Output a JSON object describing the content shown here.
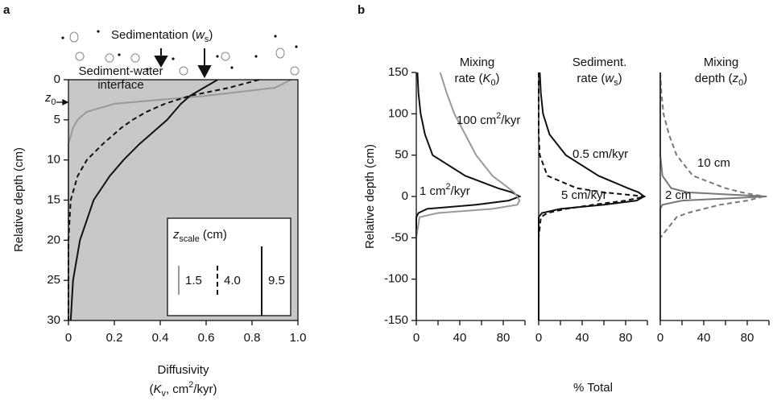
{
  "chart_data": [
    {
      "type": "line",
      "panel_label": "a",
      "title": [
        {
          "text": "Sedimentation ("
        },
        {
          "text": "w",
          "style": "i"
        },
        {
          "text": "s",
          "style": "sub"
        },
        {
          "text": ")"
        }
      ],
      "annotations": [
        "Sediment-water",
        "interface"
      ],
      "marker_label": [
        {
          "text": "z",
          "style": "i"
        },
        {
          "text": "0",
          "style": "sub"
        }
      ],
      "xlabel": [
        "Diffusivity",
        [
          {
            "text": "("
          },
          {
            "text": "K",
            "style": "i"
          },
          {
            "text": "v",
            "style": "sub"
          },
          {
            "text": ", cm"
          },
          {
            "text": "2",
            "style": "sup"
          },
          {
            "text": "/kyr)"
          }
        ]
      ],
      "ylabel": "Relative depth (cm)",
      "xlim": [
        0,
        1
      ],
      "xticks": [
        0,
        0.2,
        0.4,
        0.6,
        0.8,
        {
          "value": 1,
          "label": "1.0"
        }
      ],
      "ylim": [
        0,
        30
      ],
      "yticks": [
        0,
        5,
        10,
        15,
        20,
        25,
        30
      ],
      "y_inverted": true,
      "plot_background": "#c8c8c8",
      "legend_title": [
        {
          "text": "z",
          "style": "i"
        },
        {
          "text": "scale",
          "style": "sub"
        },
        {
          "text": " (cm)"
        }
      ],
      "y": [
        0,
        1,
        2,
        3,
        4,
        5,
        6,
        7,
        8,
        10,
        12,
        15,
        20,
        25,
        30
      ],
      "series": [
        {
          "name": "1.5",
          "color": "#999999",
          "dash": false,
          "values": [
            0.97,
            0.9,
            0.6,
            0.2,
            0.08,
            0.04,
            0.02,
            0.01,
            0,
            0,
            0,
            0,
            0,
            0,
            0
          ]
        },
        {
          "name": "4.0",
          "color": "#111111",
          "dash": true,
          "values": [
            0.83,
            0.7,
            0.53,
            0.42,
            0.34,
            0.28,
            0.23,
            0.19,
            0.15,
            0.08,
            0.04,
            0.01,
            0,
            0,
            0
          ]
        },
        {
          "name": "9.5",
          "color": "#111111",
          "dash": false,
          "values": [
            0.65,
            0.59,
            0.53,
            0.49,
            0.46,
            0.43,
            0.39,
            0.35,
            0.31,
            0.24,
            0.18,
            0.11,
            0.05,
            0.02,
            0.01
          ]
        }
      ]
    },
    {
      "type": "line",
      "panel_label": "b",
      "title": [
        [
          {
            "text": "Mixing"
          }
        ],
        [
          {
            "text": "rate ("
          },
          {
            "text": "K",
            "style": "i"
          },
          {
            "text": "0",
            "style": "sub"
          },
          {
            "text": ")"
          }
        ]
      ],
      "ylabel": "Relative depth (cm)",
      "xlim": [
        0,
        100
      ],
      "xticks": [
        0,
        40,
        80
      ],
      "xminor": [
        20,
        60,
        100
      ],
      "ylim": [
        -150,
        150
      ],
      "yticks": [
        150,
        100,
        50,
        0,
        -50,
        -100,
        -150
      ],
      "ytick_labels": true,
      "y": [
        150,
        125,
        100,
        75,
        50,
        25,
        10,
        5,
        0,
        -5,
        -10,
        -15,
        -20,
        -25,
        -50,
        -100,
        -150
      ],
      "series": [
        {
          "label": [
            {
              "text": "1 cm"
            },
            {
              "text": "2",
              "style": "sup"
            },
            {
              "text": "/kyr"
            }
          ],
          "color": "#111111",
          "dash": false,
          "values": [
            1,
            2,
            4,
            8,
            15,
            45,
            75,
            88,
            95,
            85,
            55,
            10,
            2,
            0,
            0,
            0,
            0
          ]
        },
        {
          "label": [
            {
              "text": "100 cm"
            },
            {
              "text": "2",
              "style": "sup"
            },
            {
              "text": "/kyr"
            }
          ],
          "color": "#999999",
          "dash": false,
          "values": [
            22,
            28,
            35,
            45,
            55,
            70,
            85,
            90,
            93,
            95,
            93,
            70,
            20,
            3,
            0,
            0,
            0
          ]
        }
      ]
    },
    {
      "type": "line",
      "title": [
        [
          {
            "text": "Sediment."
          }
        ],
        [
          {
            "text": "rate ("
          },
          {
            "text": "w",
            "style": "i"
          },
          {
            "text": "s",
            "style": "sub"
          },
          {
            "text": ")"
          }
        ]
      ],
      "xlabel": "% Total",
      "xlim": [
        0,
        100
      ],
      "xticks": [
        0,
        40,
        80
      ],
      "xminor": [
        20,
        60,
        100
      ],
      "ylim": [
        -150,
        150
      ],
      "ytick_labels": false,
      "y": [
        150,
        125,
        100,
        75,
        50,
        25,
        10,
        5,
        0,
        -5,
        -10,
        -15,
        -20,
        -25,
        -50,
        -100,
        -150
      ],
      "series": [
        {
          "label": [
            {
              "text": "0.5 cm/kyr"
            }
          ],
          "color": "#111111",
          "dash": false,
          "values": [
            1,
            2,
            4,
            10,
            25,
            55,
            82,
            92,
            97,
            90,
            60,
            20,
            3,
            0,
            0,
            0,
            0
          ]
        },
        {
          "label": [
            {
              "text": "5 cm/kyr"
            }
          ],
          "color": "#111111",
          "dash": true,
          "values": [
            0,
            0,
            0,
            0,
            1,
            8,
            35,
            60,
            98,
            80,
            50,
            25,
            8,
            2,
            0,
            0,
            0
          ]
        }
      ]
    },
    {
      "type": "line",
      "title": [
        [
          {
            "text": "Mixing"
          }
        ],
        [
          {
            "text": "depth ("
          },
          {
            "text": "z",
            "style": "i"
          },
          {
            "text": "0",
            "style": "sub"
          },
          {
            "text": ")"
          }
        ]
      ],
      "xlim": [
        0,
        100
      ],
      "xticks": [
        0,
        40,
        80
      ],
      "xminor": [
        20,
        60,
        100
      ],
      "ylim": [
        -150,
        150
      ],
      "ytick_labels": false,
      "y": [
        150,
        125,
        100,
        75,
        50,
        25,
        10,
        5,
        0,
        -5,
        -10,
        -15,
        -20,
        -25,
        -50,
        -100,
        -150
      ],
      "series": [
        {
          "label": [
            {
              "text": "2 cm"
            }
          ],
          "color": "#777777",
          "dash": false,
          "values": [
            0,
            0,
            0,
            0,
            0,
            2,
            10,
            25,
            98,
            20,
            2,
            0,
            0,
            0,
            0,
            0,
            0
          ]
        },
        {
          "label": [
            {
              "text": "10 cm"
            }
          ],
          "color": "#777777",
          "dash": true,
          "values": [
            0,
            1,
            3,
            8,
            15,
            30,
            60,
            75,
            95,
            80,
            55,
            40,
            25,
            15,
            0,
            0,
            0
          ]
        }
      ]
    }
  ]
}
